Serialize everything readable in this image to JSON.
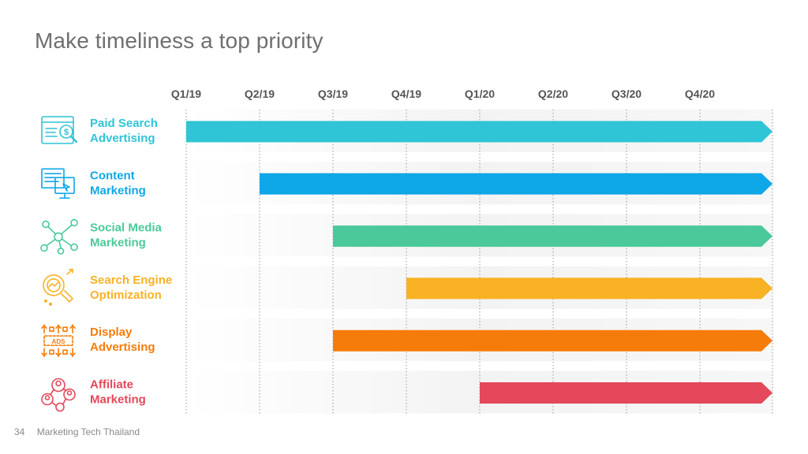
{
  "slide": {
    "title": "Make timeliness a top priority",
    "page_number": "34",
    "footer_text": "Marketing Tech Thailand"
  },
  "chart_data": {
    "type": "bar",
    "orientation": "horizontal-timeline",
    "title": "",
    "x_ticks": [
      "Q1/19",
      "Q2/19",
      "Q3/19",
      "Q4/19",
      "Q1/20",
      "Q2/20",
      "Q3/20",
      "Q4/20"
    ],
    "x_range": [
      "Q1/19",
      "Q4/20 end"
    ],
    "grid": "vertical dotted lines at each quarter",
    "rows": [
      {
        "name": "Paid Search Advertising",
        "lines": [
          "Paid Search",
          "Advertising"
        ],
        "start": "Q1/19",
        "end": "Q4/20 end",
        "color": "#2fc4d6",
        "icon": "paid-search-icon"
      },
      {
        "name": "Content Marketing",
        "lines": [
          "Content",
          "Marketing"
        ],
        "start": "Q2/19",
        "end": "Q4/20 end",
        "color": "#0ea7e8",
        "icon": "content-marketing-icon"
      },
      {
        "name": "Social Media Marketing",
        "lines": [
          "Social Media",
          "Marketing"
        ],
        "start": "Q3/19",
        "end": "Q4/20 end",
        "color": "#4bc99a",
        "icon": "social-network-icon"
      },
      {
        "name": "Search Engine Optimization",
        "lines": [
          "Search Engine",
          "Optimization"
        ],
        "start": "Q4/19",
        "end": "Q4/20 end",
        "color": "#f8b224",
        "icon": "seo-icon"
      },
      {
        "name": "Display Advertising",
        "lines": [
          "Display",
          "Advertising"
        ],
        "start": "Q3/19",
        "end": "Q4/20 end",
        "color": "#f57c08",
        "icon": "ads-icon"
      },
      {
        "name": "Affiliate Marketing",
        "lines": [
          "Affiliate",
          "Marketing"
        ],
        "start": "Q1/20",
        "end": "Q4/20 end",
        "color": "#e4485a",
        "icon": "affiliate-network-icon"
      }
    ]
  }
}
